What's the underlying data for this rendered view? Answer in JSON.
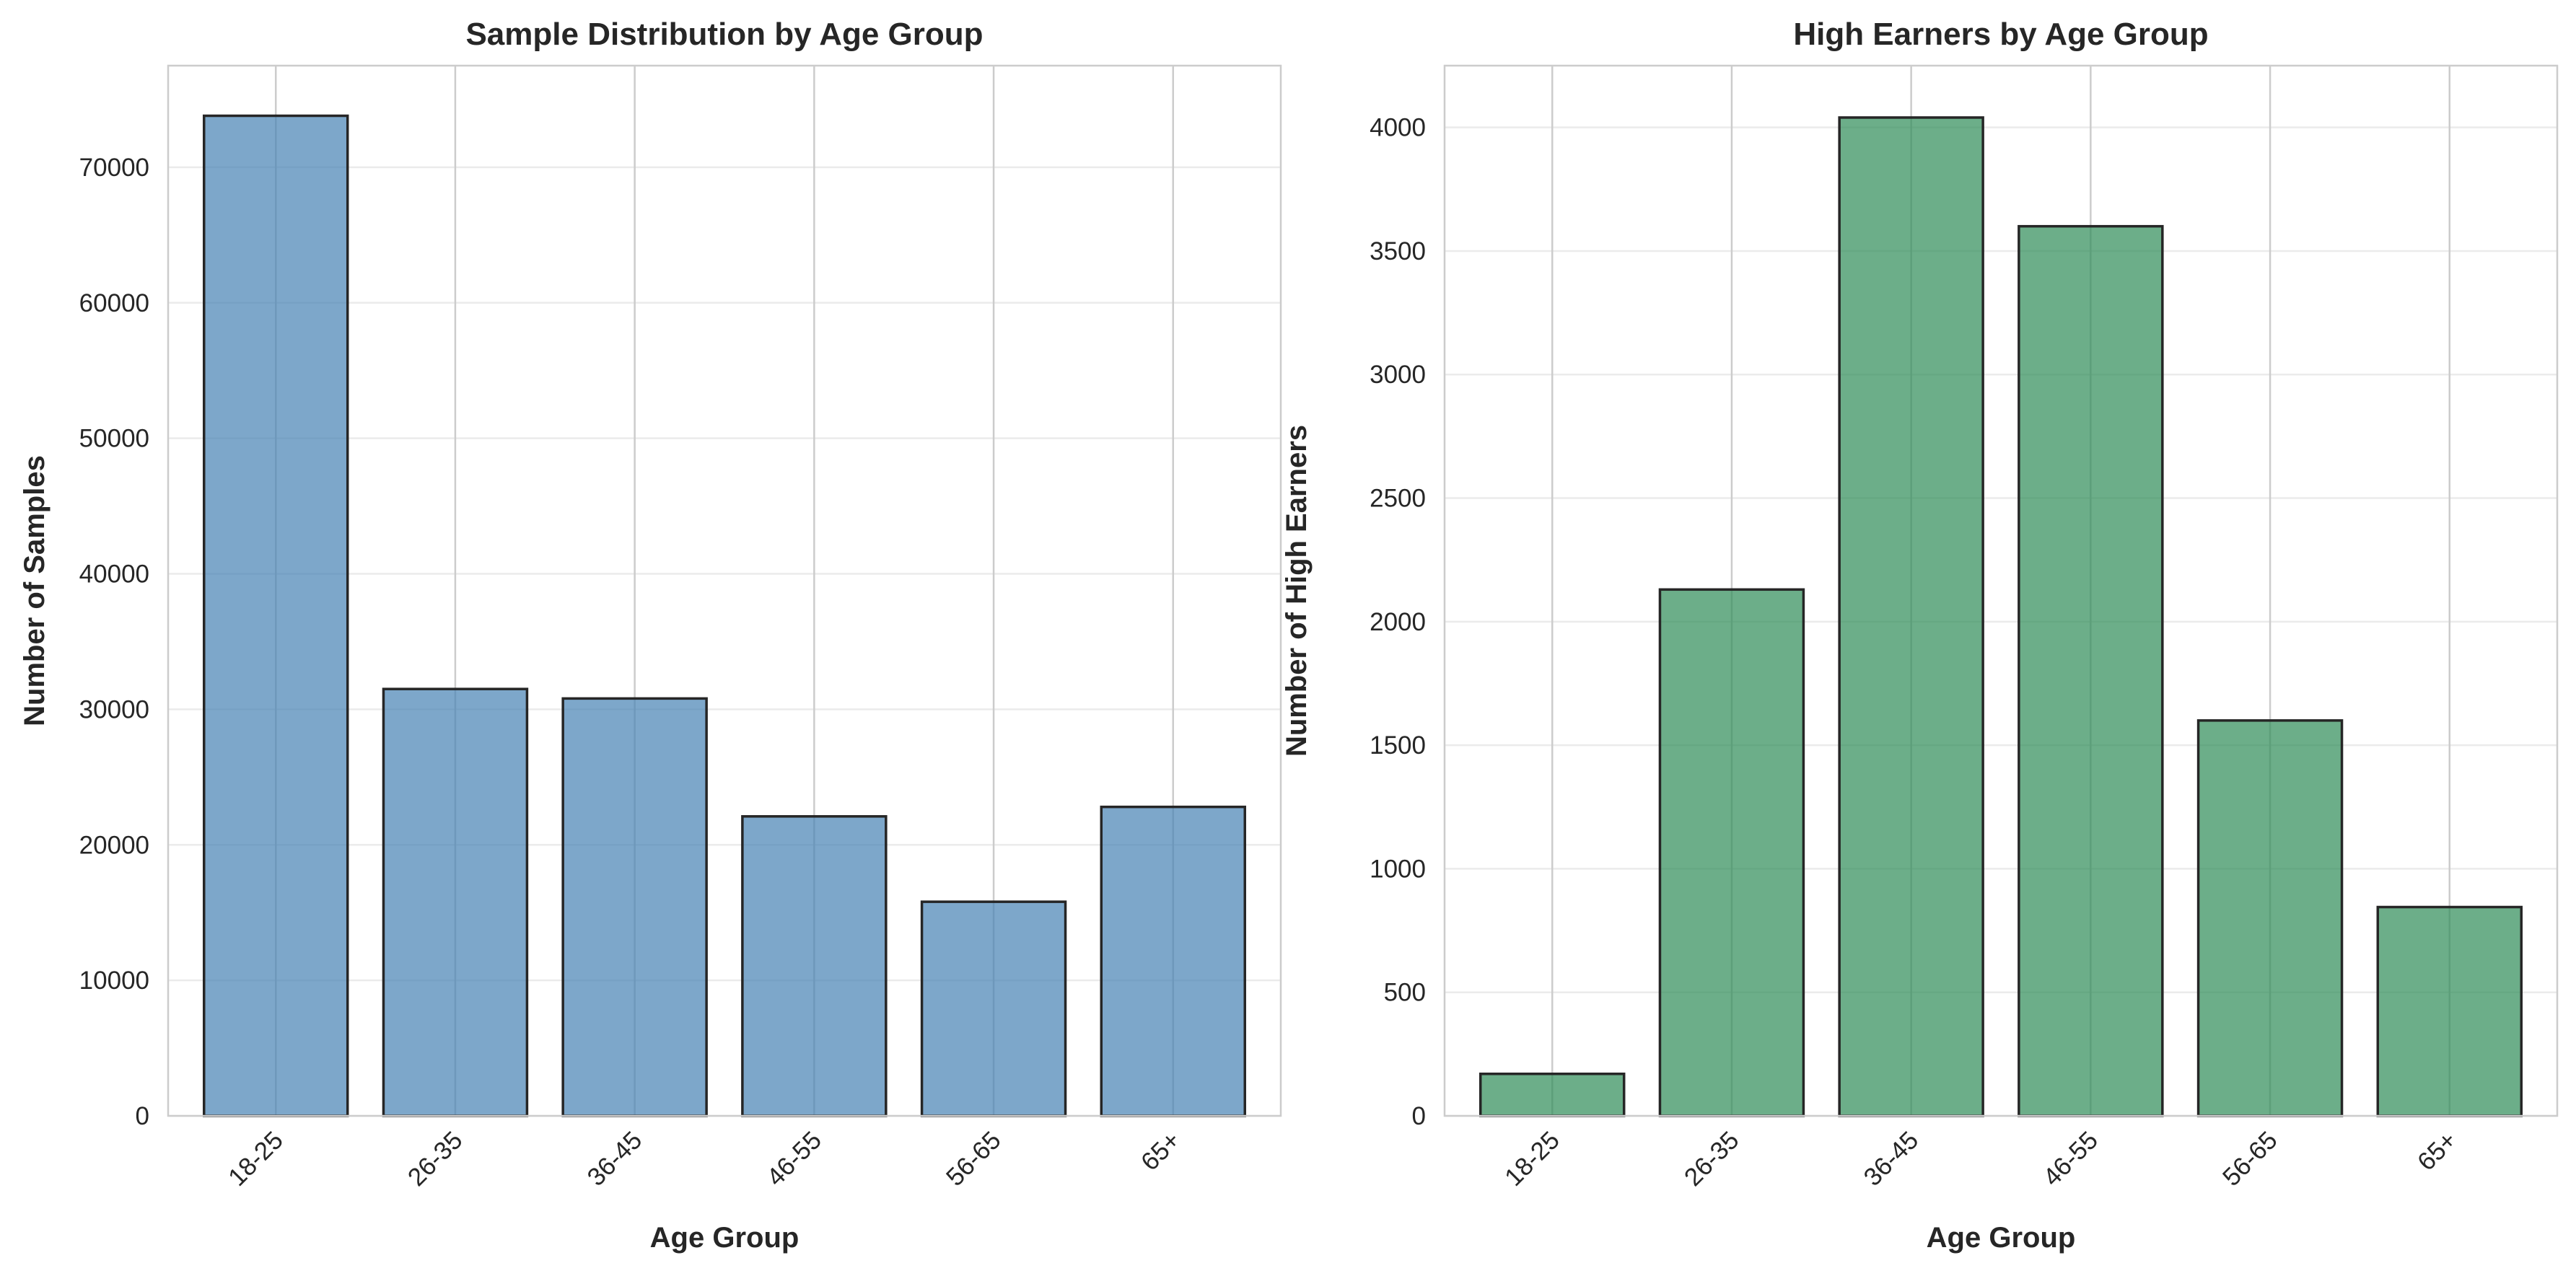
{
  "chart_data": [
    {
      "type": "bar",
      "title": "Sample Distribution by Age Group",
      "xlabel": "Age Group",
      "ylabel": "Number of Samples",
      "categories": [
        "18-25",
        "26-35",
        "36-45",
        "46-55",
        "56-65",
        "65+"
      ],
      "values": [
        73800,
        31500,
        30800,
        22100,
        15800,
        22800
      ],
      "ylim": [
        0,
        77500
      ],
      "yticks": [
        0,
        10000,
        20000,
        30000,
        40000,
        50000,
        60000,
        70000
      ],
      "color": "#4682b4",
      "opacity": 0.7,
      "grid": true
    },
    {
      "type": "bar",
      "title": "High Earners by Age Group",
      "xlabel": "Age Group",
      "ylabel": "Number of High Earners",
      "categories": [
        "18-25",
        "26-35",
        "36-45",
        "46-55",
        "56-65",
        "65+"
      ],
      "values": [
        170,
        2130,
        4040,
        3600,
        1600,
        845
      ],
      "ylim": [
        0,
        4250
      ],
      "yticks": [
        0,
        500,
        1000,
        1500,
        2000,
        2500,
        3000,
        3500,
        4000
      ],
      "color": "#2e8b57",
      "opacity": 0.7,
      "grid": true
    }
  ]
}
